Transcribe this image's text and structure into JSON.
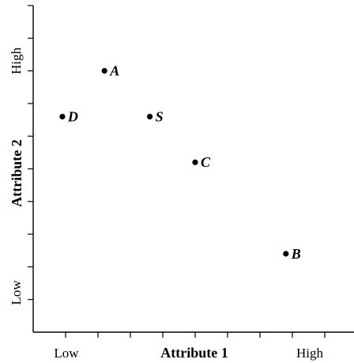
{
  "chart_data": {
    "type": "scatter",
    "title": "",
    "xlabel": "Attribute 1",
    "ylabel": "Attribute 2",
    "x_endpoint_labels": {
      "low": "Low",
      "high": "High"
    },
    "y_endpoint_labels": {
      "low": "Low",
      "high": "High"
    },
    "xlim": [
      0,
      10
    ],
    "ylim": [
      0,
      10
    ],
    "x_minor_ticks": [
      1,
      2,
      3,
      4,
      5,
      6,
      7,
      8,
      9,
      10
    ],
    "y_minor_ticks": [
      1,
      2,
      3,
      4,
      5,
      6,
      7,
      8,
      9,
      10
    ],
    "grid": false,
    "legend": "none",
    "points": [
      {
        "label": "A",
        "x": 2.2,
        "y": 8.0
      },
      {
        "label": "D",
        "x": 0.9,
        "y": 6.6
      },
      {
        "label": "S",
        "x": 3.6,
        "y": 6.6
      },
      {
        "label": "C",
        "x": 5.0,
        "y": 5.2
      },
      {
        "label": "B",
        "x": 7.8,
        "y": 2.4
      }
    ],
    "colors": {
      "axis": "#000000",
      "points": "#000000",
      "background": "#ffffff"
    }
  }
}
